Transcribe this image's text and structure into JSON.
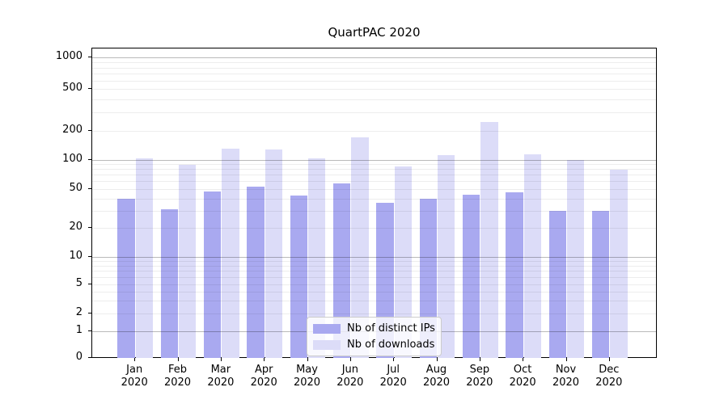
{
  "chart_data": {
    "type": "bar",
    "title": "QuartPAC 2020",
    "yscale": "symlog",
    "grid": true,
    "ylim": [
      0,
      1300
    ],
    "y_tick_values": [
      0,
      1,
      2,
      5,
      10,
      20,
      50,
      100,
      200,
      500,
      1000
    ],
    "y_minor_gridlines": [
      2,
      3,
      4,
      5,
      6,
      7,
      8,
      9,
      20,
      30,
      40,
      50,
      60,
      70,
      80,
      90,
      200,
      300,
      400,
      500,
      600,
      700,
      800,
      900
    ],
    "y_major_gridlines": [
      1,
      10,
      100,
      1000
    ],
    "x_tick_months": [
      "Jan",
      "Feb",
      "Mar",
      "Apr",
      "May",
      "Jun",
      "Jul",
      "Aug",
      "Sep",
      "Oct",
      "Nov",
      "Dec"
    ],
    "x_tick_year": "2020",
    "categories": [
      "Jan 2020",
      "Feb 2020",
      "Mar 2020",
      "Apr 2020",
      "May 2020",
      "Jun 2020",
      "Jul 2020",
      "Aug 2020",
      "Sep 2020",
      "Oct 2020",
      "Nov 2020",
      "Dec 2020"
    ],
    "series": [
      {
        "name": "Nb of distinct IPs",
        "color": "#a9a9f0",
        "values": [
          40,
          31,
          47,
          53,
          43,
          57,
          36,
          40,
          44,
          46,
          30,
          30
        ]
      },
      {
        "name": "Nb of downloads",
        "color": "#dcdcf8",
        "values": [
          102,
          89,
          131,
          128,
          103,
          170,
          85,
          111,
          243,
          113,
          100,
          79
        ]
      }
    ],
    "legend_position": "lower-center",
    "colors": {
      "axis": "#000000",
      "major_grid": "rgba(0,0,0,0.27)",
      "minor_grid": "rgba(0,0,0,0.07)",
      "background": "#ffffff"
    }
  }
}
